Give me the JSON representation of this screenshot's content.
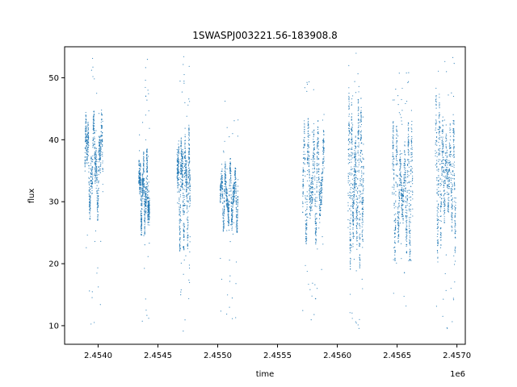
{
  "chart_data": {
    "type": "scatter",
    "title": "1SWASPJ003221.56-183908.8",
    "xlabel": "time",
    "ylabel": "flux",
    "x_offset_label": "1e6",
    "xlim": [
      2.45372,
      2.45707
    ],
    "ylim": [
      7,
      55
    ],
    "x_ticks": [
      2.454,
      2.4545,
      2.455,
      2.4555,
      2.456,
      2.4565,
      2.457
    ],
    "x_tick_labels": [
      "2.4540",
      "2.4545",
      "2.4550",
      "2.4555",
      "2.4560",
      "2.4565",
      "2.4570"
    ],
    "y_ticks": [
      10,
      20,
      30,
      40,
      50
    ],
    "y_tick_labels": [
      "10",
      "20",
      "30",
      "40",
      "50"
    ],
    "grid": false,
    "legend": "none",
    "point_color": "#1f77b4",
    "segments": [
      {
        "x_start": 2.45389,
        "x_end": 2.45404,
        "main_low": 27,
        "main_high": 45,
        "scatter_low": 9.5,
        "scatter_high": 53.5,
        "mean": 31
      },
      {
        "x_start": 2.45434,
        "x_end": 2.45443,
        "main_low": 24.5,
        "main_high": 38.5,
        "scatter_low": 10,
        "scatter_high": 53.5,
        "mean": 31
      },
      {
        "x_start": 2.45466,
        "x_end": 2.45477,
        "main_low": 22,
        "main_high": 43,
        "scatter_low": 9,
        "scatter_high": 53.5,
        "mean": 31
      },
      {
        "x_start": 2.45502,
        "x_end": 2.45517,
        "main_low": 25,
        "main_high": 37,
        "scatter_low": 10.5,
        "scatter_high": 47,
        "mean": 31
      },
      {
        "x_start": 2.45571,
        "x_end": 2.45589,
        "main_low": 23,
        "main_high": 43.5,
        "scatter_low": 9.5,
        "scatter_high": 52,
        "mean": 30
      },
      {
        "x_start": 2.45609,
        "x_end": 2.45622,
        "main_low": 19,
        "main_high": 47,
        "scatter_low": 8.8,
        "scatter_high": 54.5,
        "mean": 30
      },
      {
        "x_start": 2.45646,
        "x_end": 2.45663,
        "main_low": 20.5,
        "main_high": 43,
        "scatter_low": 12.5,
        "scatter_high": 52,
        "mean": 30
      },
      {
        "x_start": 2.45682,
        "x_end": 2.45699,
        "main_low": 20,
        "main_high": 49,
        "scatter_low": 9,
        "scatter_high": 54,
        "mean": 32
      }
    ]
  }
}
